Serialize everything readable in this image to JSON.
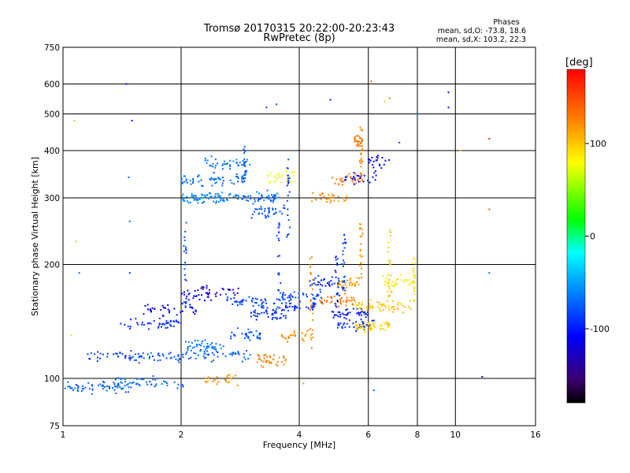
{
  "chart_data": {
    "type": "scatter",
    "title": "Tromsø 20170315 20:22:00-20:23:43",
    "subtitle": "RwPretec (8p)",
    "xlabel": "Frequency [MHz]",
    "ylabel": "Stationary phase Virtual Height [km]",
    "x_scale": "log",
    "y_scale": "log",
    "xlim": [
      1,
      16
    ],
    "ylim": [
      75,
      750
    ],
    "x_ticks": [
      1,
      2,
      4,
      6,
      8,
      10,
      16
    ],
    "y_ticks": [
      75,
      100,
      200,
      300,
      400,
      500,
      600,
      750
    ],
    "grid": true,
    "stats": {
      "heading": "Phases",
      "line1": "mean, sd,O: -73.8, 18.6",
      "line2": "mean, sd,X: 103.2, 22.3"
    },
    "colorbar": {
      "label": "[deg]",
      "range": [
        -180,
        180
      ],
      "ticks": [
        100,
        0,
        -100
      ],
      "colormap": "rainbow",
      "colors": [
        "#000000",
        "#3a006e",
        "#0000ff",
        "#00a0ff",
        "#00ffff",
        "#00ff00",
        "#ffff00",
        "#ff8000",
        "#ff0000"
      ]
    },
    "traces": [
      {
        "x_range": [
          1.0,
          1.5
        ],
        "height": 95,
        "phase": -75,
        "points": 60
      },
      {
        "x_range": [
          1.3,
          2.05
        ],
        "height": 97,
        "phase": -70,
        "points": 50
      },
      {
        "x_range": [
          1.15,
          1.5
        ],
        "height": 115,
        "phase": -90,
        "points": 30
      },
      {
        "x_range": [
          1.5,
          2.0
        ],
        "height": 114,
        "phase": -80,
        "points": 40
      },
      {
        "x_range": [
          2.0,
          3.0
        ],
        "height": 115,
        "phase": -75,
        "points": 50
      },
      {
        "x_range": [
          2.05,
          2.6
        ],
        "height": 122,
        "phase": -65,
        "points": 40
      },
      {
        "x_range": [
          2.6,
          3.2
        ],
        "height": 130,
        "phase": -80,
        "points": 30
      },
      {
        "x_range": [
          1.4,
          2.0
        ],
        "height": 140,
        "phase": -95,
        "points": 45
      },
      {
        "x_range": [
          1.6,
          2.2
        ],
        "height": 152,
        "phase": -110,
        "points": 40
      },
      {
        "x_range": [
          2.0,
          2.4
        ],
        "height": 165,
        "phase": -110,
        "points": 25
      },
      {
        "x_range": [
          2.2,
          2.8
        ],
        "height": 170,
        "phase": -125,
        "points": 25
      },
      {
        "x_range": [
          2.6,
          3.3
        ],
        "height": 160,
        "phase": -85,
        "points": 40
      },
      {
        "x_range": [
          3.0,
          3.8
        ],
        "height": 148,
        "phase": -95,
        "points": 40
      },
      {
        "x_range": [
          3.2,
          4.4
        ],
        "height": 155,
        "phase": -90,
        "points": 45
      },
      {
        "x_range": [
          3.5,
          4.6
        ],
        "height": 165,
        "phase": -85,
        "points": 40
      },
      {
        "x_range": [
          4.2,
          5.2
        ],
        "height": 178,
        "phase": -95,
        "points": 35
      },
      {
        "x_range": [
          4.8,
          6.0
        ],
        "height": 148,
        "phase": -100,
        "points": 40
      },
      {
        "x_range": [
          5.0,
          6.2
        ],
        "height": 138,
        "phase": -95,
        "points": 40
      },
      {
        "x_range": [
          2.3,
          2.8
        ],
        "height": 99,
        "phase": 120,
        "points": 25
      },
      {
        "x_range": [
          3.1,
          3.7
        ],
        "height": 112,
        "phase": 125,
        "points": 40
      },
      {
        "x_range": [
          3.6,
          4.4
        ],
        "height": 130,
        "phase": 120,
        "points": 30
      },
      {
        "x_range": [
          4.5,
          5.6
        ],
        "height": 160,
        "phase": 130,
        "points": 40
      },
      {
        "x_range": [
          5.0,
          5.7
        ],
        "height": 178,
        "phase": 115,
        "points": 30
      },
      {
        "x_range": [
          5.5,
          6.8
        ],
        "height": 137,
        "phase": 95,
        "points": 50
      },
      {
        "x_range": [
          5.5,
          7.7
        ],
        "height": 155,
        "phase": 100,
        "points": 60
      },
      {
        "x_range": [
          6.5,
          7.8
        ],
        "height": 180,
        "phase": 85,
        "points": 30
      },
      {
        "x_range": [
          2.0,
          2.8
        ],
        "height": 300,
        "phase": -60,
        "points": 80
      },
      {
        "x_range": [
          2.0,
          2.9
        ],
        "height": 335,
        "phase": -70,
        "points": 60
      },
      {
        "x_range": [
          2.3,
          3.0
        ],
        "height": 370,
        "phase": -65,
        "points": 40
      },
      {
        "x_range": [
          2.8,
          3.6
        ],
        "height": 300,
        "phase": -70,
        "points": 50
      },
      {
        "x_range": [
          3.0,
          3.7
        ],
        "height": 275,
        "phase": -80,
        "points": 35
      },
      {
        "x_range": [
          3.3,
          3.9
        ],
        "height": 340,
        "phase": 80,
        "points": 25
      },
      {
        "x_range": [
          4.3,
          5.5
        ],
        "height": 300,
        "phase": 120,
        "points": 30
      },
      {
        "x_range": [
          4.8,
          5.8
        ],
        "height": 335,
        "phase": 130,
        "points": 30
      },
      {
        "x_range": [
          5.2,
          6.3
        ],
        "height": 340,
        "phase": -105,
        "points": 25
      },
      {
        "x_range": [
          6.0,
          7.0
        ],
        "height": 375,
        "phase": -110,
        "points": 20
      },
      {
        "x_range": [
          5.5,
          5.8
        ],
        "height": 420,
        "phase": 130,
        "points": 30
      }
    ],
    "cusps": [
      {
        "x": 2.05,
        "height_range": [
          150,
          260
        ],
        "phase": -80
      },
      {
        "x": 2.9,
        "height_range": [
          330,
          410
        ],
        "phase": -75
      },
      {
        "x": 3.55,
        "height_range": [
          160,
          260
        ],
        "phase": -85
      },
      {
        "x": 3.75,
        "height_range": [
          230,
          380
        ],
        "phase": -85
      },
      {
        "x": 4.3,
        "height_range": [
          120,
          215
        ],
        "phase": 125
      },
      {
        "x": 5.0,
        "height_range": [
          140,
          220
        ],
        "phase": -95
      },
      {
        "x": 5.2,
        "height_range": [
          170,
          240
        ],
        "phase": -85
      },
      {
        "x": 5.75,
        "height_range": [
          180,
          260
        ],
        "phase": 120
      },
      {
        "x": 5.75,
        "height_range": [
          340,
          470
        ],
        "phase": 125
      },
      {
        "x": 6.8,
        "height_range": [
          150,
          250
        ],
        "phase": 100
      },
      {
        "x": 7.85,
        "height_range": [
          160,
          210
        ],
        "phase": 90
      }
    ],
    "scattered_points": [
      {
        "x": 1.07,
        "y": 480,
        "phase": 100
      },
      {
        "x": 1.45,
        "y": 600,
        "phase": -100
      },
      {
        "x": 1.5,
        "y": 480,
        "phase": -100
      },
      {
        "x": 1.47,
        "y": 340,
        "phase": -75
      },
      {
        "x": 1.48,
        "y": 260,
        "phase": -70
      },
      {
        "x": 1.08,
        "y": 230,
        "phase": 100
      },
      {
        "x": 1.48,
        "y": 190,
        "phase": -90
      },
      {
        "x": 1.1,
        "y": 190,
        "phase": -70
      },
      {
        "x": 1.05,
        "y": 130,
        "phase": 90
      },
      {
        "x": 3.3,
        "y": 520,
        "phase": -85
      },
      {
        "x": 3.5,
        "y": 530,
        "phase": -75
      },
      {
        "x": 4.8,
        "y": 545,
        "phase": -100
      },
      {
        "x": 6.1,
        "y": 610,
        "phase": 145
      },
      {
        "x": 6.6,
        "y": 540,
        "phase": 100
      },
      {
        "x": 6.8,
        "y": 550,
        "phase": 125
      },
      {
        "x": 9.6,
        "y": 570,
        "phase": -110
      },
      {
        "x": 9.6,
        "y": 520,
        "phase": -100
      },
      {
        "x": 12.2,
        "y": 430,
        "phase": 160
      },
      {
        "x": 12.2,
        "y": 280,
        "phase": 140
      },
      {
        "x": 12.2,
        "y": 190,
        "phase": -70
      },
      {
        "x": 11.7,
        "y": 101,
        "phase": -100
      },
      {
        "x": 6.2,
        "y": 93,
        "phase": -75
      },
      {
        "x": 4.1,
        "y": 97,
        "phase": 125
      },
      {
        "x": 8.0,
        "y": 500,
        "phase": -70
      },
      {
        "x": 7.2,
        "y": 420,
        "phase": -85
      },
      {
        "x": 10.3,
        "y": 400,
        "phase": 100
      }
    ]
  }
}
